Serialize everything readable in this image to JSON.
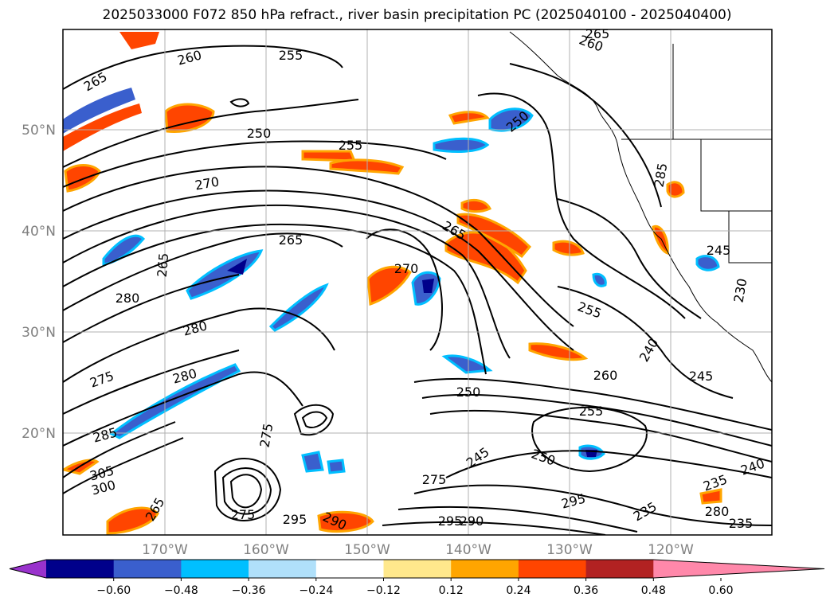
{
  "title": "2025033000 F072 850 hPa refract., river basin precipitation PC (2025040100 - 2025040400)",
  "lat_labels": [
    "50°N",
    "40°N",
    "30°N",
    "20°N"
  ],
  "lon_labels": [
    "170°W",
    "160°W",
    "150°W",
    "140°W",
    "130°W",
    "120°W"
  ],
  "contour_labels": [
    "265",
    "260",
    "255",
    "260",
    "265",
    "250",
    "250",
    "255",
    "270",
    "265",
    "265",
    "285",
    "270",
    "280",
    "265",
    "245",
    "255",
    "275",
    "280",
    "260",
    "240",
    "245",
    "250",
    "255",
    "285",
    "275",
    "245",
    "250",
    "305",
    "300",
    "275",
    "235",
    "240",
    "295",
    "275",
    "295",
    "290",
    "290",
    "295",
    "235",
    "235",
    "280",
    "280",
    "230",
    "265"
  ],
  "colorbar": {
    "tick_labels": [
      "−0.60",
      "−0.48",
      "−0.36",
      "−0.24",
      "−0.12",
      "0.12",
      "0.24",
      "0.36",
      "0.48",
      "0.60"
    ],
    "colors": [
      "#9932cc",
      "#00008b",
      "#3a5fcd",
      "#00bfff",
      "#b0e0fa",
      "#ffffff",
      "#ffe88c",
      "#ffa500",
      "#ff4500",
      "#b22222",
      "#ff88aa"
    ]
  },
  "colors": {
    "positive_light": "#ffe88c",
    "positive_mid": "#ffa500",
    "positive_strong": "#ff4500",
    "positive_max": "#b22222",
    "negative_light": "#b0e0fa",
    "negative_mid": "#00bfff",
    "negative_strong": "#3a5fcd",
    "negative_max": "#00008b"
  }
}
